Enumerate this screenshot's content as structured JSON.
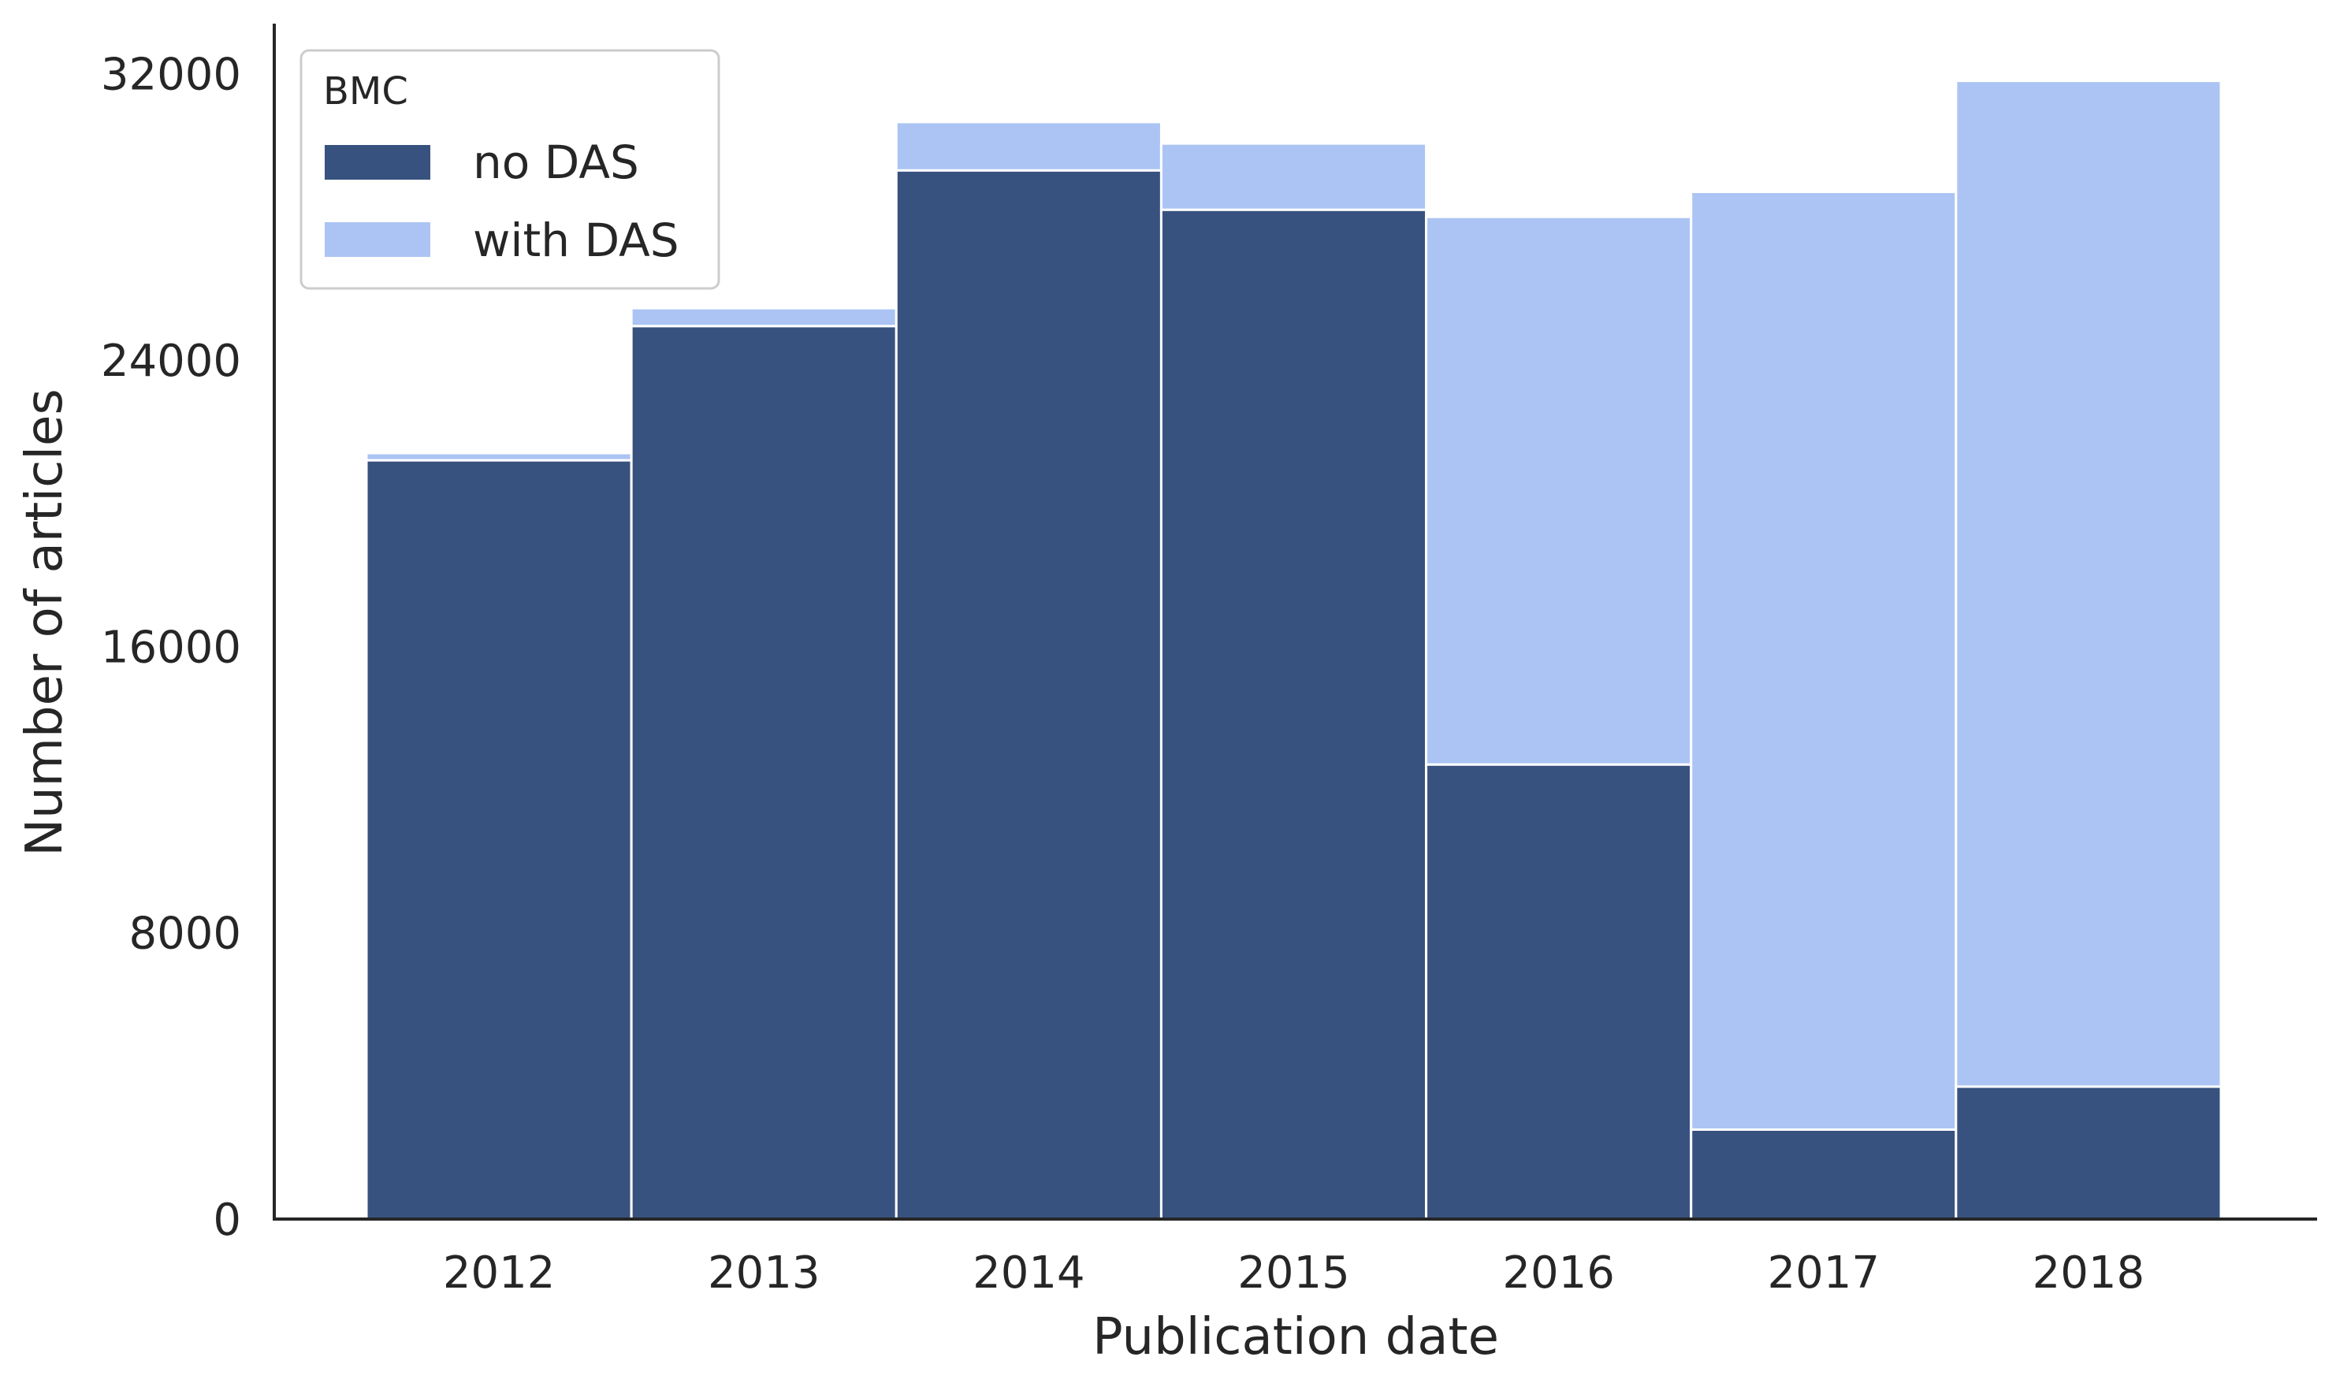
{
  "chart_data": {
    "type": "bar",
    "stacked": true,
    "categories": [
      "2012",
      "2013",
      "2014",
      "2015",
      "2016",
      "2017",
      "2018"
    ],
    "series": [
      {
        "name": "no DAS",
        "color": "#38527f",
        "values": [
          21200,
          24950,
          29300,
          28200,
          12700,
          2500,
          3700
        ]
      },
      {
        "name": "with DAS",
        "color": "#abc4f3",
        "values": [
          200,
          500,
          1350,
          1850,
          15300,
          26200,
          28100
        ]
      }
    ],
    "xlabel": "Publication date",
    "ylabel": "Number of articles",
    "ylim": [
      0,
      33400
    ],
    "yticks": [
      0,
      8000,
      16000,
      24000,
      32000
    ],
    "ytick_labels": [
      "0",
      "8000",
      "16000",
      "24000",
      "32000"
    ],
    "legend": {
      "title": "BMC",
      "placement": "top-left",
      "entries": [
        "no DAS",
        "with DAS"
      ]
    },
    "grid": false
  }
}
